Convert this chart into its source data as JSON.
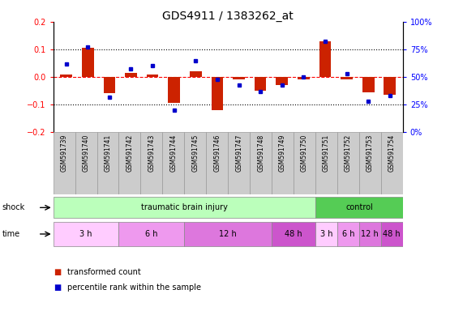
{
  "title": "GDS4911 / 1383262_at",
  "samples": [
    "GSM591739",
    "GSM591740",
    "GSM591741",
    "GSM591742",
    "GSM591743",
    "GSM591744",
    "GSM591745",
    "GSM591746",
    "GSM591747",
    "GSM591748",
    "GSM591749",
    "GSM591750",
    "GSM591751",
    "GSM591752",
    "GSM591753",
    "GSM591754"
  ],
  "red_values": [
    0.01,
    0.105,
    -0.06,
    0.015,
    0.01,
    -0.095,
    0.02,
    -0.12,
    -0.01,
    -0.05,
    -0.03,
    -0.01,
    0.13,
    -0.01,
    -0.055,
    -0.065
  ],
  "blue_values_pct": [
    62,
    77,
    32,
    57,
    60,
    20,
    65,
    48,
    43,
    37,
    43,
    50,
    82,
    53,
    28,
    33
  ],
  "ylim_left": [
    -0.2,
    0.2
  ],
  "ylim_right": [
    0,
    100
  ],
  "shock_groups": [
    {
      "label": "traumatic brain injury",
      "start": 0,
      "end": 12,
      "color": "#bbffbb"
    },
    {
      "label": "control",
      "start": 12,
      "end": 16,
      "color": "#55cc55"
    }
  ],
  "time_groups": [
    {
      "label": "3 h",
      "start": 0,
      "end": 3,
      "color": "#ffccff"
    },
    {
      "label": "6 h",
      "start": 3,
      "end": 6,
      "color": "#ee99ee"
    },
    {
      "label": "12 h",
      "start": 6,
      "end": 10,
      "color": "#dd77dd"
    },
    {
      "label": "48 h",
      "start": 10,
      "end": 12,
      "color": "#cc55cc"
    },
    {
      "label": "3 h",
      "start": 12,
      "end": 13,
      "color": "#ffccff"
    },
    {
      "label": "6 h",
      "start": 13,
      "end": 14,
      "color": "#ee99ee"
    },
    {
      "label": "12 h",
      "start": 14,
      "end": 15,
      "color": "#dd77dd"
    },
    {
      "label": "48 h",
      "start": 15,
      "end": 16,
      "color": "#cc55cc"
    }
  ],
  "red_color": "#cc2200",
  "blue_color": "#0000cc",
  "bg_color": "#ffffff",
  "title_fontsize": 10,
  "tick_fontsize": 7,
  "sample_fontsize": 5.5,
  "row_fontsize": 7
}
